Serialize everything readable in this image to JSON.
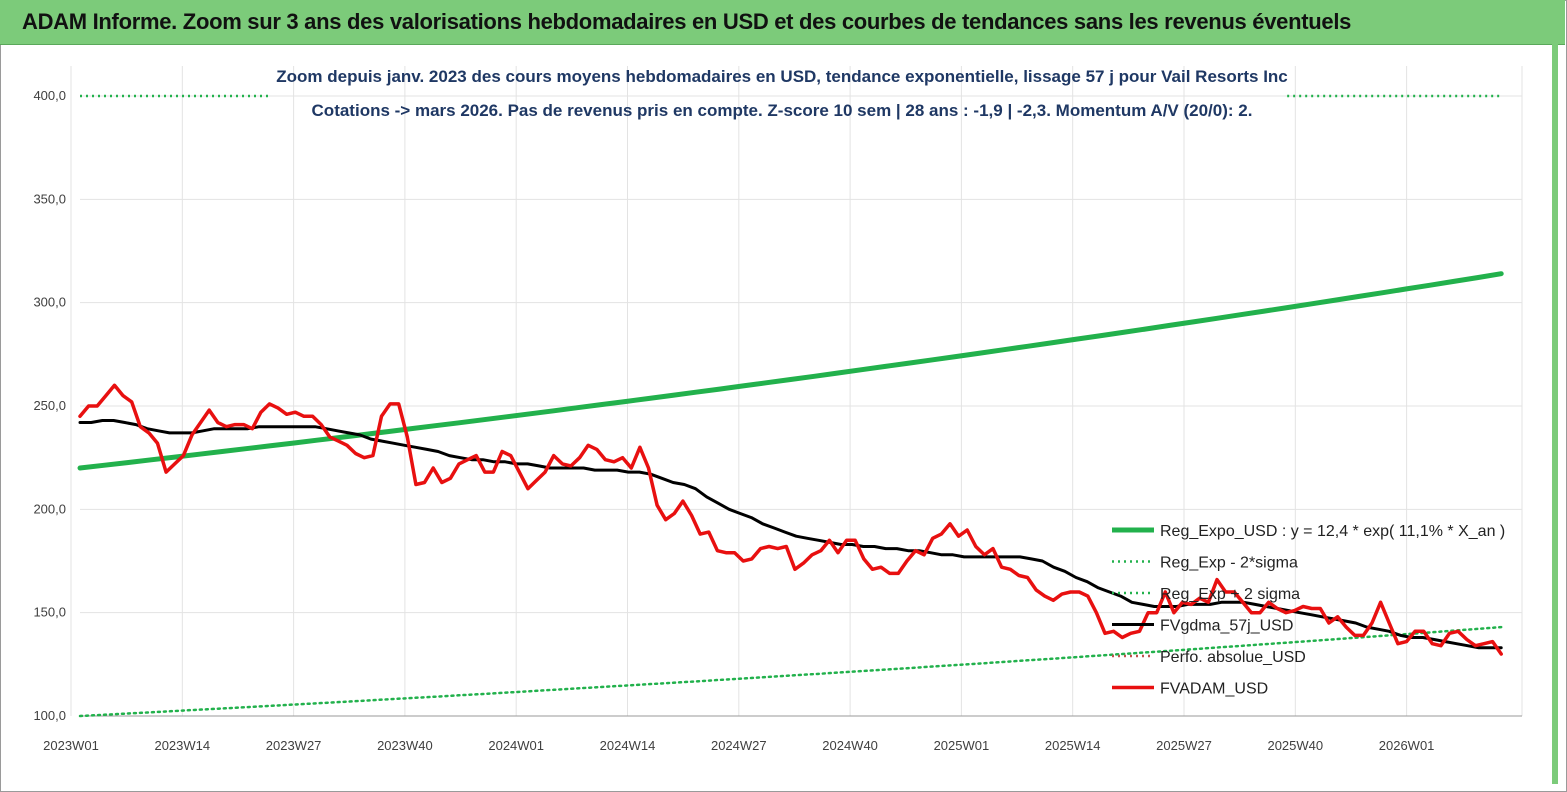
{
  "banner": {
    "title": "ADAM Informe. Zoom sur 3 ans des valorisations hebdomadaires en USD et des courbes de tendances sans les revenus éventuels"
  },
  "colors": {
    "banner": "#7ccb7a",
    "reg_expo": "#22b14c",
    "sigma_lines": "#22b14c",
    "fvgdma": "#000000",
    "perfo": "#c0504d",
    "fvadam": "#e81010",
    "title_text": "#1f3864"
  },
  "chart_data": {
    "type": "line",
    "title": "Zoom depuis janv. 2023 des cours moyens hebdomadaires en USD, tendance exponentielle, lissage 57 j pour Vail Resorts Inc",
    "subtitle": "Cotations -> mars 2026. Pas de revenus pris en compte. Z-score 10 sem | 28 ans : -1,9 | -2,3. Momentum A/V (20/0): 2.",
    "ylim": [
      100,
      400
    ],
    "y_ticks": [
      "100,0",
      "150,0",
      "200,0",
      "250,0",
      "300,0",
      "350,0",
      "400,0"
    ],
    "x_ticks": [
      "2023W01",
      "2023W14",
      "2023W27",
      "2023W40",
      "2024W01",
      "2024W14",
      "2024W27",
      "2024W40",
      "2025W01",
      "2025W14",
      "2025W27",
      "2025W40",
      "2026W01"
    ],
    "legend_position": "right",
    "series": [
      {
        "name": "Reg_Expo_USD : y = 12,4 * exp( 11,1% * X_an )",
        "style": "solid-thick-green",
        "x": [
          "2023W01",
          "2026W12"
        ],
        "values": [
          220,
          314
        ]
      },
      {
        "name": "Reg_Exp - 2*sigma",
        "style": "dotted-green",
        "x": [
          "2023W01",
          "2026W12"
        ],
        "values": [
          100,
          143
        ]
      },
      {
        "name": "Reg_Exp + 2 sigma",
        "style": "dotted-green",
        "x": [
          "2023W01",
          "2026W12"
        ],
        "values": [
          400,
          400
        ]
      },
      {
        "name": "FVgdma_57j_USD",
        "style": "solid-black",
        "values": [
          242,
          242,
          243,
          243,
          242,
          241,
          239,
          238,
          237,
          237,
          237,
          238,
          239,
          239,
          239,
          239,
          240,
          240,
          240,
          240,
          240,
          240,
          239,
          238,
          237,
          236,
          234,
          233,
          232,
          231,
          230,
          229,
          228,
          226,
          225,
          224,
          224,
          223,
          223,
          222,
          222,
          221,
          220,
          220,
          220,
          220,
          219,
          219,
          219,
          218,
          218,
          217,
          215,
          213,
          212,
          210,
          206,
          203,
          200,
          198,
          196,
          193,
          191,
          189,
          187,
          186,
          185,
          184,
          183,
          183,
          182,
          182,
          181,
          181,
          180,
          180,
          179,
          178,
          178,
          177,
          177,
          177,
          177,
          177,
          177,
          176,
          175,
          172,
          170,
          167,
          165,
          162,
          160,
          158,
          155,
          154,
          153,
          153,
          153,
          154,
          154,
          154,
          155,
          155,
          155,
          154,
          153,
          152,
          151,
          150,
          149,
          148,
          147,
          146,
          145,
          143,
          142,
          141,
          139,
          138,
          138,
          137,
          136,
          135,
          134,
          133,
          133,
          133
        ]
      },
      {
        "name": "Perfo. absolue_USD",
        "style": "dotted-red",
        "values": []
      },
      {
        "name": "FVADAM_USD",
        "style": "solid-red",
        "values": [
          245,
          250,
          250,
          255,
          260,
          255,
          252,
          240,
          237,
          232,
          218,
          222,
          226,
          236,
          242,
          248,
          242,
          240,
          241,
          241,
          239,
          247,
          251,
          249,
          246,
          247,
          245,
          245,
          241,
          235,
          233,
          231,
          227,
          225,
          226,
          245,
          251,
          251,
          235,
          212,
          213,
          220,
          213,
          215,
          222,
          224,
          226,
          218,
          218,
          228,
          226,
          218,
          210,
          214,
          218,
          226,
          222,
          221,
          225,
          231,
          229,
          224,
          223,
          225,
          220,
          230,
          220,
          202,
          195,
          198,
          204,
          197,
          188,
          189,
          180,
          179,
          179,
          175,
          176,
          181,
          182,
          181,
          182,
          171,
          174,
          178,
          180,
          185,
          179,
          185,
          185,
          176,
          171,
          172,
          169,
          169,
          175,
          180,
          178,
          186,
          188,
          193,
          187,
          190,
          182,
          178,
          181,
          172,
          171,
          168,
          167,
          161,
          158,
          156,
          159,
          160,
          160,
          158,
          150,
          140,
          141,
          138,
          140,
          141,
          150,
          150,
          160,
          150,
          155,
          154,
          157,
          155,
          166,
          160,
          160,
          155,
          150,
          150,
          155,
          152,
          150,
          151,
          153,
          152,
          152,
          145,
          148,
          143,
          139,
          139,
          145,
          155,
          145,
          135,
          136,
          141,
          141,
          135,
          134,
          140,
          141,
          137,
          134,
          135,
          136,
          130
        ]
      }
    ]
  }
}
